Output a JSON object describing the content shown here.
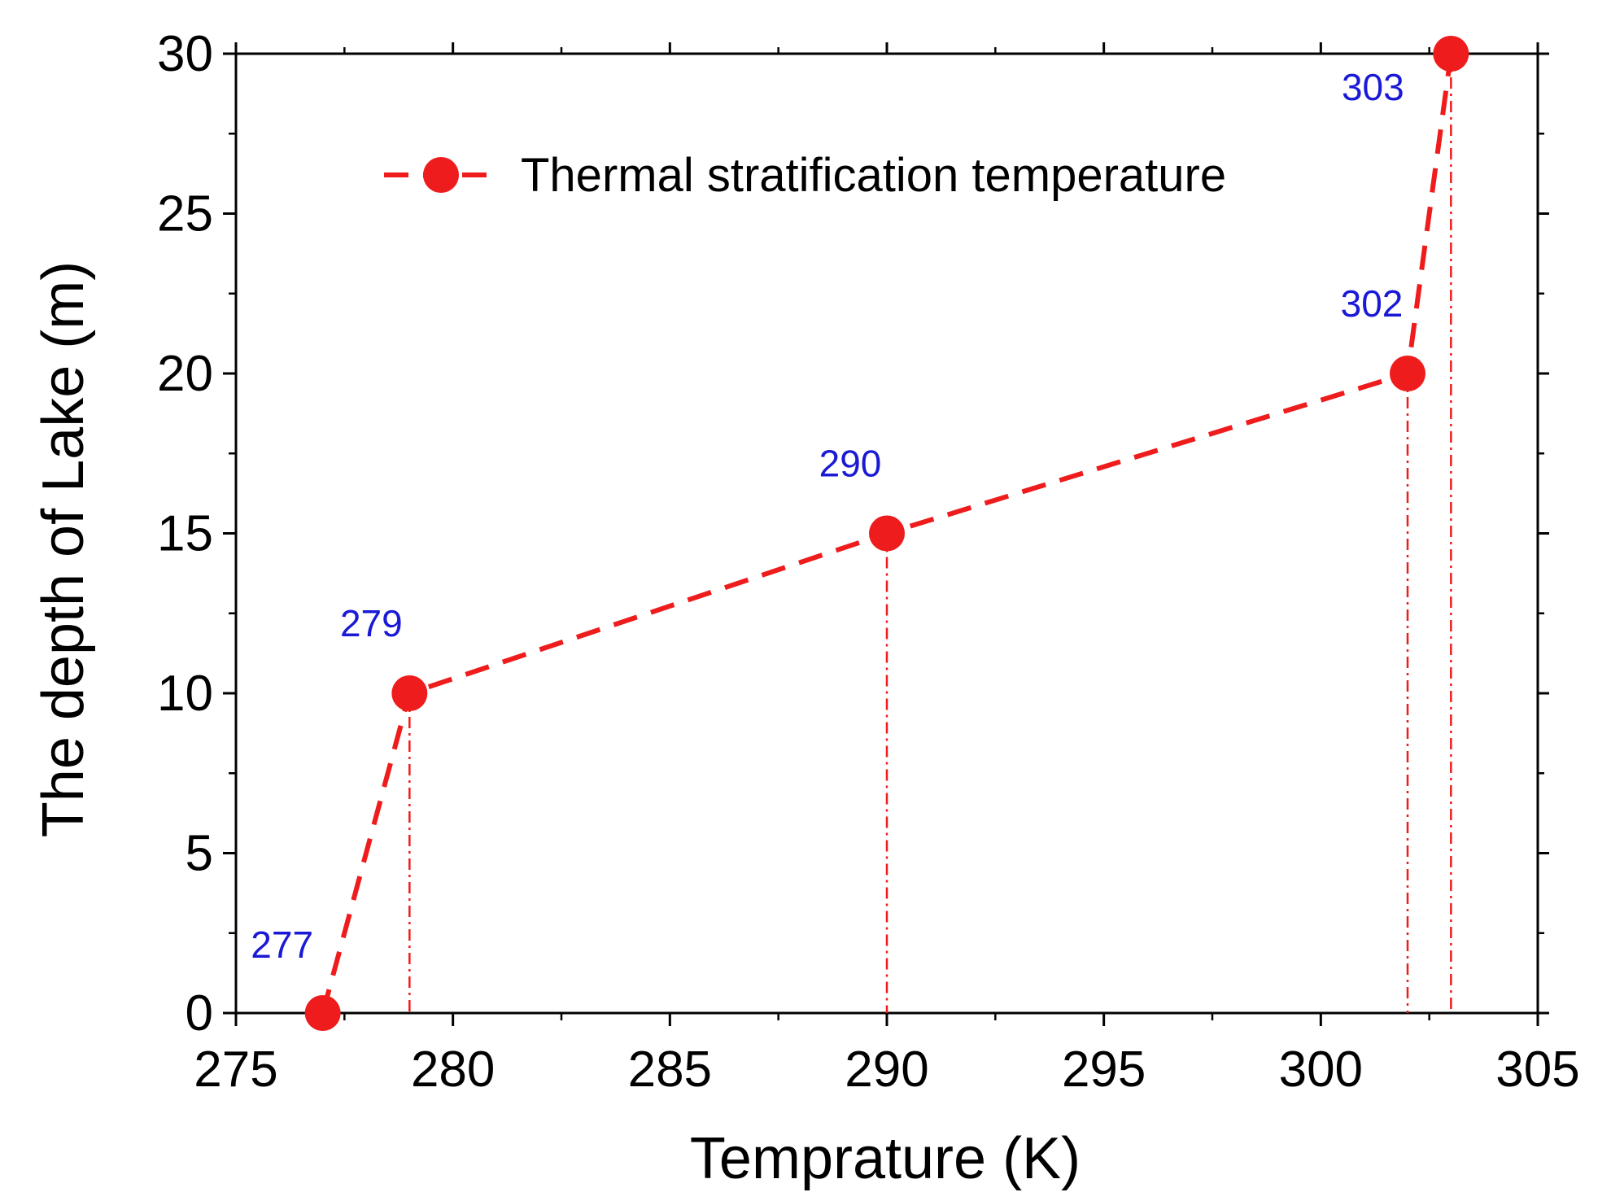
{
  "chart_data": {
    "type": "line",
    "title": "",
    "xlabel": "Temprature (K)",
    "ylabel": "The depth of Lake (m)",
    "xlim": [
      275,
      305
    ],
    "ylim": [
      0,
      30
    ],
    "xticks": [
      275,
      280,
      285,
      290,
      295,
      300,
      305
    ],
    "yticks": [
      0,
      5,
      10,
      15,
      20,
      25,
      30
    ],
    "xtick_labels": [
      "275",
      "280",
      "285",
      "290",
      "295",
      "300",
      "305"
    ],
    "ytick_labels": [
      "0",
      "5",
      "10",
      "15",
      "20",
      "25",
      "30"
    ],
    "grid": false,
    "legend_position": "top-center",
    "series": [
      {
        "name": "Thermal stratification temperature",
        "color": "#ee1c1c",
        "line_style": "dashed",
        "marker": "circle",
        "x": [
          277,
          279,
          290,
          302,
          303
        ],
        "y": [
          0,
          10,
          15,
          20,
          30
        ]
      }
    ],
    "drop_lines": {
      "style": "dash-dot",
      "color": "#ee1c1c"
    },
    "annotations": [
      {
        "text": "277",
        "x": 277,
        "y": 0
      },
      {
        "text": "279",
        "x": 279,
        "y": 10
      },
      {
        "text": "290",
        "x": 290,
        "y": 15
      },
      {
        "text": "302",
        "x": 302,
        "y": 20
      },
      {
        "text": "303",
        "x": 303,
        "y": 30
      }
    ],
    "annotation_color": "#1a1ad6"
  }
}
